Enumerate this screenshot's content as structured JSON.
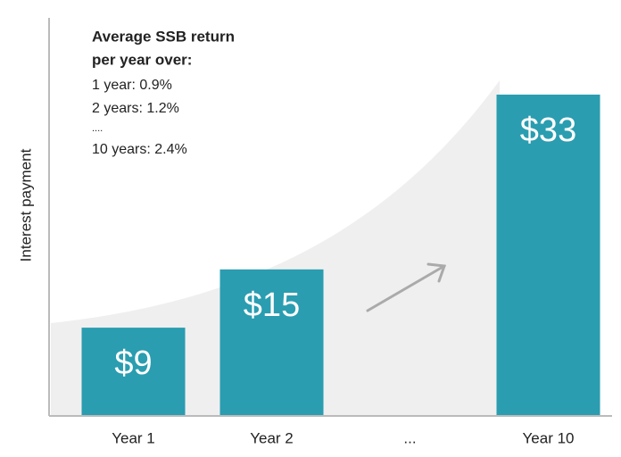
{
  "chart_data": {
    "type": "bar",
    "y_label": "Interest payment",
    "categories": [
      "Year 1",
      "Year 2",
      "...",
      "Year 10"
    ],
    "values": [
      9,
      15,
      null,
      33
    ],
    "value_labels": [
      "$9",
      "$15",
      null,
      "$33"
    ],
    "color": "#2a9db0",
    "annotations": [
      "Average SSB return",
      "per year over:",
      "1 year: 0.9%",
      "2 years: 1.2%",
      "....",
      "10 years: 2.4%"
    ]
  }
}
